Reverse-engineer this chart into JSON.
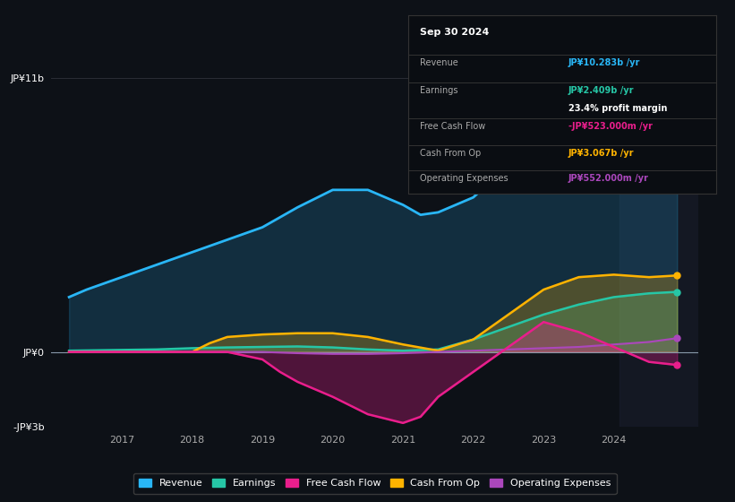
{
  "background_color": "#0d1117",
  "plot_bg_color": "#0d1117",
  "ylim": [
    -3000000000.0,
    11500000000.0
  ],
  "xlim": [
    2016.0,
    2025.2
  ],
  "ytick_labels": [
    "JP¥0",
    "JP¥11b",
    "-JP¥3b"
  ],
  "xtick_labels": [
    "2017",
    "2018",
    "2019",
    "2020",
    "2021",
    "2022",
    "2023",
    "2024"
  ],
  "grid_color": "#2a2d35",
  "colors": {
    "revenue": "#29b6f6",
    "earnings": "#26c6a6",
    "free_cash_flow": "#e91e8c",
    "cash_from_op": "#ffb300",
    "operating_expenses": "#ab47bc"
  },
  "info_box": {
    "date": "Sep 30 2024",
    "revenue_label": "Revenue",
    "revenue_value": "JP¥10.283b /yr",
    "earnings_label": "Earnings",
    "earnings_value": "JP¥2.409b /yr",
    "margin_value": "23.4% profit margin",
    "fcf_label": "Free Cash Flow",
    "fcf_value": "-JP¥523.000m /yr",
    "cashop_label": "Cash From Op",
    "cashop_value": "JP¥3.067b /yr",
    "opex_label": "Operating Expenses",
    "opex_value": "JP¥552.000m /yr"
  },
  "revenue": {
    "x": [
      2016.25,
      2016.5,
      2017.0,
      2017.5,
      2018.0,
      2018.5,
      2019.0,
      2019.5,
      2020.0,
      2020.5,
      2021.0,
      2021.25,
      2021.5,
      2022.0,
      2022.5,
      2023.0,
      2023.5,
      2024.0,
      2024.5,
      2024.9
    ],
    "y": [
      2200000000,
      2500000000,
      3000000000,
      3500000000,
      4000000000,
      4500000000,
      5000000000,
      5800000000,
      6500000000,
      6500000000,
      5900000000,
      5500000000,
      5600000000,
      6200000000,
      7500000000,
      8800000000,
      9500000000,
      10000000000,
      10200000000,
      10283000000
    ]
  },
  "earnings": {
    "x": [
      2016.25,
      2017.0,
      2017.5,
      2018.0,
      2018.5,
      2019.0,
      2019.5,
      2020.0,
      2020.5,
      2021.0,
      2021.5,
      2022.0,
      2022.5,
      2023.0,
      2023.5,
      2024.0,
      2024.5,
      2024.9
    ],
    "y": [
      50000000,
      80000000,
      100000000,
      150000000,
      180000000,
      200000000,
      220000000,
      180000000,
      100000000,
      50000000,
      100000000,
      500000000,
      1000000000,
      1500000000,
      1900000000,
      2200000000,
      2350000000,
      2409000000
    ]
  },
  "free_cash_flow": {
    "x": [
      2016.25,
      2017.0,
      2017.5,
      2018.0,
      2018.5,
      2019.0,
      2019.25,
      2019.5,
      2020.0,
      2020.5,
      2021.0,
      2021.25,
      2021.5,
      2022.0,
      2022.5,
      2023.0,
      2023.5,
      2024.0,
      2024.5,
      2024.9
    ],
    "y": [
      0,
      0,
      0,
      0,
      0,
      -300000000,
      -800000000,
      -1200000000,
      -1800000000,
      -2500000000,
      -2850000000,
      -2600000000,
      -1800000000,
      -800000000,
      200000000,
      1200000000,
      800000000,
      200000000,
      -400000000,
      -523000000
    ]
  },
  "cash_from_op": {
    "x": [
      2016.25,
      2017.0,
      2017.5,
      2018.0,
      2018.25,
      2018.5,
      2019.0,
      2019.5,
      2020.0,
      2020.5,
      2021.0,
      2021.5,
      2022.0,
      2022.5,
      2023.0,
      2023.5,
      2024.0,
      2024.5,
      2024.9
    ],
    "y": [
      0,
      0,
      0,
      0,
      350000000,
      600000000,
      700000000,
      750000000,
      750000000,
      600000000,
      300000000,
      50000000,
      500000000,
      1500000000,
      2500000000,
      3000000000,
      3100000000,
      3000000000,
      3067000000
    ]
  },
  "operating_expenses": {
    "x": [
      2016.25,
      2017.0,
      2018.0,
      2018.5,
      2019.0,
      2019.5,
      2020.0,
      2020.5,
      2021.0,
      2021.5,
      2022.0,
      2022.5,
      2023.0,
      2023.5,
      2024.0,
      2024.5,
      2024.9
    ],
    "y": [
      0,
      0,
      0,
      0,
      0,
      -50000000,
      -80000000,
      -80000000,
      -50000000,
      0,
      50000000,
      100000000,
      150000000,
      200000000,
      300000000,
      400000000,
      552000000
    ]
  },
  "legend": [
    {
      "label": "Revenue",
      "color": "#29b6f6"
    },
    {
      "label": "Earnings",
      "color": "#26c6a6"
    },
    {
      "label": "Free Cash Flow",
      "color": "#e91e8c"
    },
    {
      "label": "Cash From Op",
      "color": "#ffb300"
    },
    {
      "label": "Operating Expenses",
      "color": "#ab47bc"
    }
  ]
}
